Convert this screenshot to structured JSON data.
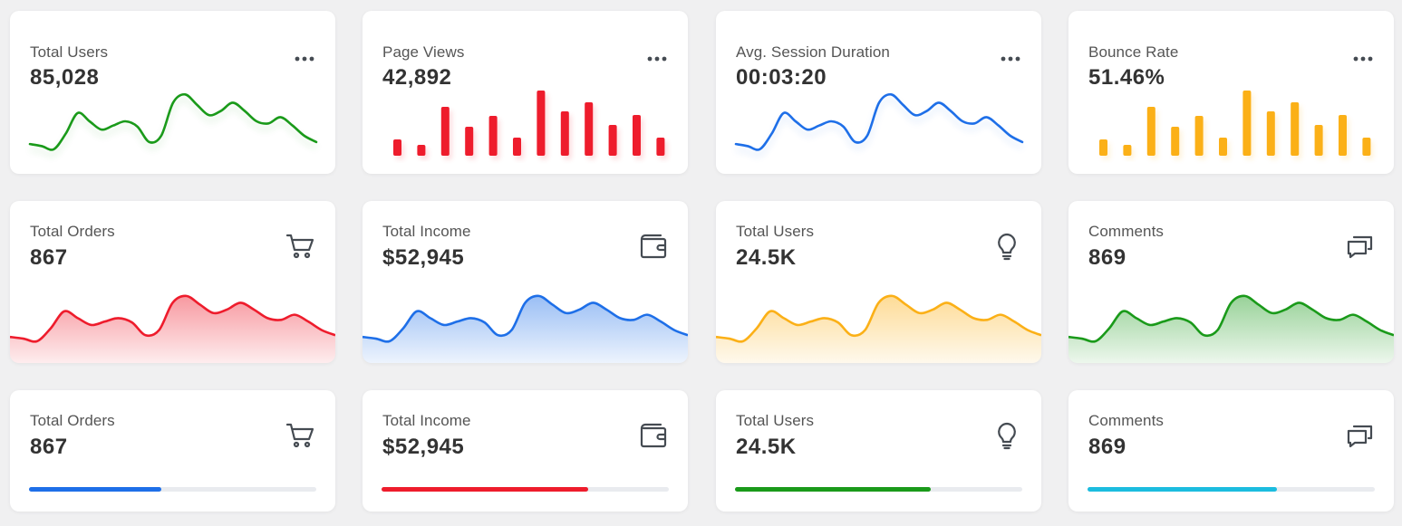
{
  "colors": {
    "green": "#1a9a1a",
    "red": "#ee1c2c",
    "blue": "#1e6fe8",
    "orange": "#fbb017",
    "cyan": "#1bbcdf",
    "icon": "#454b52"
  },
  "row1": [
    {
      "title": "Total Users",
      "value": "85,028",
      "chart": "line",
      "color": "green",
      "menu_icon": "more-horizontal-icon"
    },
    {
      "title": "Page Views",
      "value": "42,892",
      "chart": "bar",
      "color": "red",
      "menu_icon": "more-horizontal-icon"
    },
    {
      "title": "Avg. Session Duration",
      "value": "00:03:20",
      "chart": "line",
      "color": "blue",
      "menu_icon": "more-horizontal-icon"
    },
    {
      "title": "Bounce Rate",
      "value": "51.46%",
      "chart": "bar",
      "color": "orange",
      "menu_icon": "more-horizontal-icon"
    }
  ],
  "row2": [
    {
      "title": "Total Orders",
      "value": "867",
      "icon": "cart-icon",
      "color": "red"
    },
    {
      "title": "Total Income",
      "value": "$52,945",
      "icon": "wallet-icon",
      "color": "blue"
    },
    {
      "title": "Total Users",
      "value": "24.5K",
      "icon": "lightbulb-icon",
      "color": "orange"
    },
    {
      "title": "Comments",
      "value": "869",
      "icon": "comments-icon",
      "color": "green"
    }
  ],
  "row3": [
    {
      "title": "Total Orders",
      "value": "867",
      "icon": "cart-icon",
      "color": "blue",
      "progress": 0.46
    },
    {
      "title": "Total Income",
      "value": "$52,945",
      "icon": "wallet-icon",
      "color": "red",
      "progress": 0.72
    },
    {
      "title": "Total Users",
      "value": "24.5K",
      "icon": "lightbulb-icon",
      "color": "green",
      "progress": 0.68
    },
    {
      "title": "Comments",
      "value": "869",
      "icon": "comments-icon",
      "color": "cyan",
      "progress": 0.66
    }
  ],
  "sparkline": [
    20,
    18,
    15,
    30,
    50,
    42,
    34,
    38,
    42,
    37,
    22,
    28,
    60,
    68,
    58,
    48,
    52,
    60,
    52,
    42,
    40,
    46,
    38,
    28,
    22
  ],
  "bars": [
    18,
    12,
    54,
    32,
    44,
    20,
    72,
    49,
    59,
    34,
    45,
    20
  ]
}
